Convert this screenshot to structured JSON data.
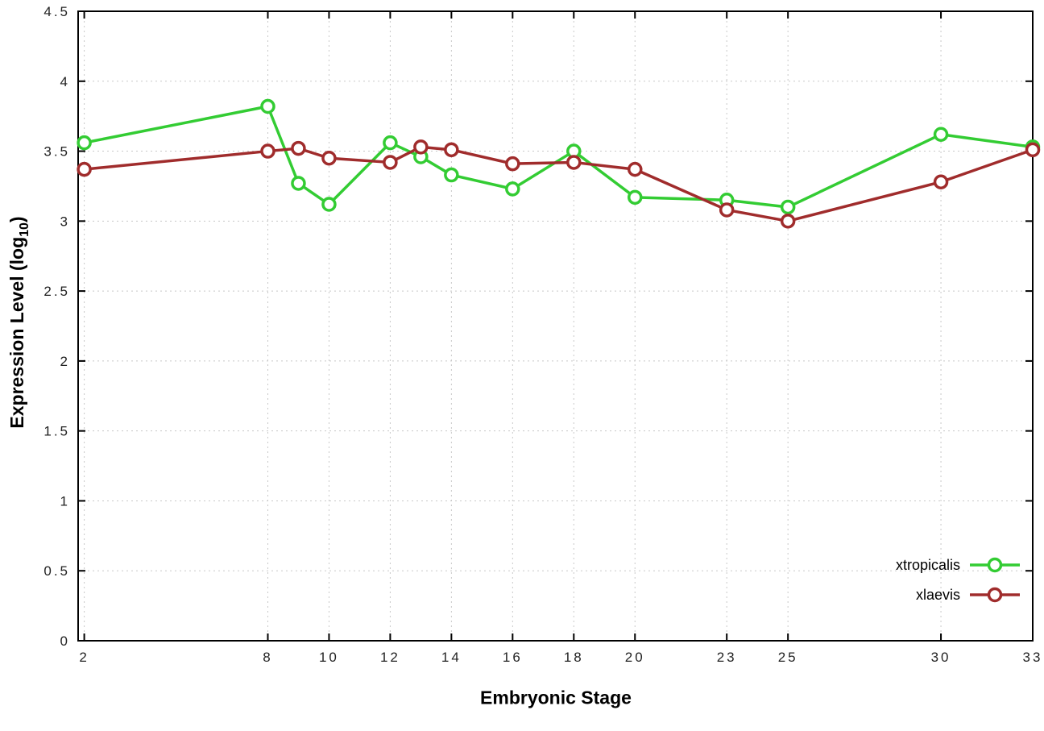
{
  "chart_data": {
    "type": "line",
    "xlabel": "Embryonic Stage",
    "ylabel": "Expression Level (log10)",
    "ylabel_parts": {
      "main": "Expression Level (log",
      "sub": "10",
      "close": ")"
    },
    "x": [
      2,
      8,
      9,
      10,
      12,
      13,
      14,
      16,
      18,
      20,
      23,
      25,
      30,
      33
    ],
    "xtick_values": [
      2,
      8,
      10,
      12,
      14,
      16,
      18,
      20,
      23,
      25,
      30,
      33
    ],
    "xtick_labels": [
      "2",
      "8",
      "10",
      "12",
      "14",
      "16",
      "18",
      "20",
      "23",
      "25",
      "30",
      "33"
    ],
    "ytick_values": [
      0,
      0.5,
      1,
      1.5,
      2,
      2.5,
      3,
      3.5,
      4,
      4.5
    ],
    "ytick_labels": [
      "0",
      "0.5",
      "1",
      "1.5",
      "2",
      "2.5",
      "3",
      "3.5",
      "4",
      "4.5"
    ],
    "xlim": [
      1.8,
      33
    ],
    "ylim": [
      0,
      4.5
    ],
    "grid": true,
    "legend_position": "bottom-right",
    "series": [
      {
        "name": "xtropicalis",
        "color": "#33cc33",
        "values": [
          3.56,
          3.82,
          3.27,
          3.12,
          3.56,
          3.46,
          3.33,
          3.23,
          3.5,
          3.17,
          3.15,
          3.1,
          3.62,
          3.53
        ]
      },
      {
        "name": "xlaevis",
        "color": "#a02c2c",
        "values": [
          3.37,
          3.5,
          3.52,
          3.45,
          3.42,
          3.53,
          3.51,
          3.41,
          3.42,
          3.37,
          3.08,
          3.0,
          3.28,
          3.51
        ]
      }
    ]
  },
  "colors": {
    "grid": "#c8c8c8",
    "border": "#000000",
    "tick_text": "#222222"
  }
}
